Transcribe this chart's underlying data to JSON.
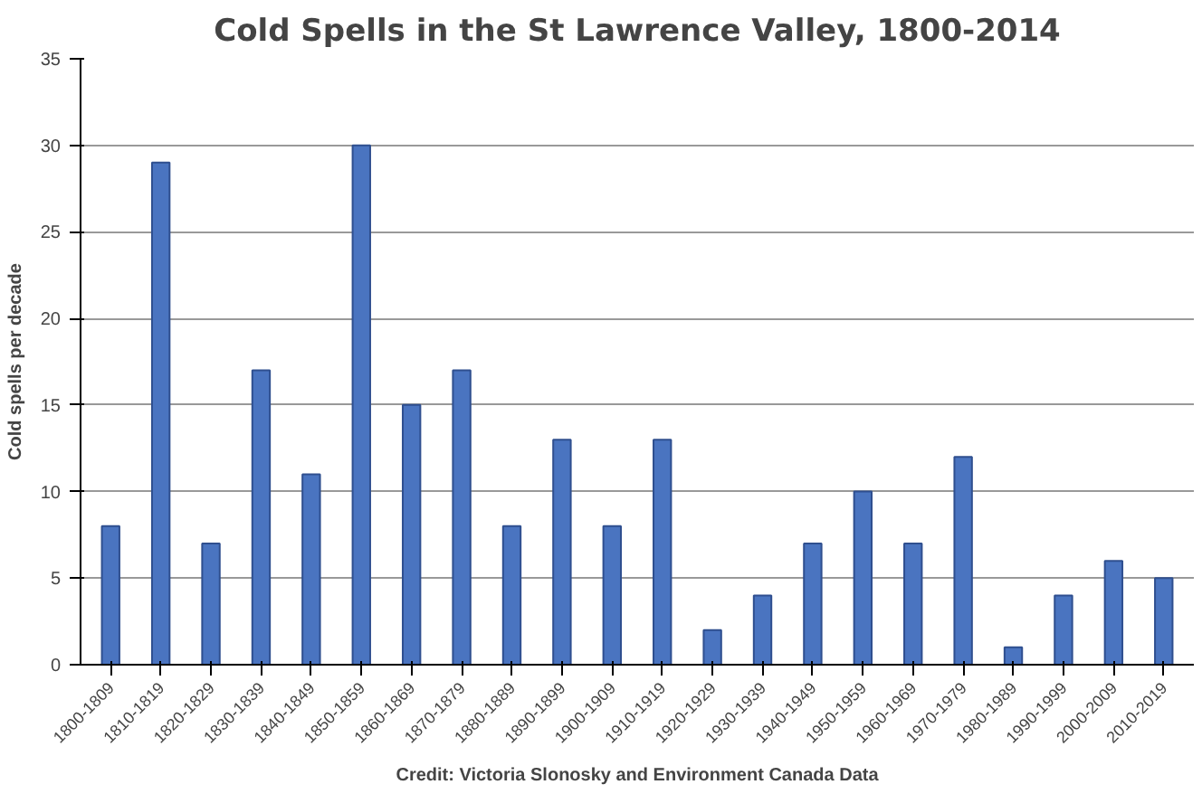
{
  "chart_data": {
    "type": "bar",
    "title": "Cold Spells in the St Lawrence Valley, 1800-2014",
    "ylabel": "Cold spells per decade",
    "categories": [
      "1800-1809",
      "1810-1819",
      "1820-1829",
      "1830-1839",
      "1840-1849",
      "1850-1859",
      "1860-1869",
      "1870-1879",
      "1880-1889",
      "1890-1899",
      "1900-1909",
      "1910-1919",
      "1920-1929",
      "1930-1939",
      "1940-1949",
      "1950-1959",
      "1960-1969",
      "1970-1979",
      "1980-1989",
      "1990-1999",
      "2000-2009",
      "2010-2019"
    ],
    "values": [
      8,
      29,
      7,
      17,
      11,
      30,
      15,
      17,
      8,
      13,
      8,
      13,
      2,
      4,
      7,
      10,
      7,
      12,
      1,
      4,
      6,
      5
    ],
    "color": "#4a74c0",
    "ylim": [
      0,
      35
    ],
    "yticks": [
      0,
      5,
      10,
      15,
      20,
      25,
      30,
      35
    ],
    "grid": "y",
    "annotations": [
      "Credit: Victoria Slonosky and Environment Canada Data"
    ]
  }
}
